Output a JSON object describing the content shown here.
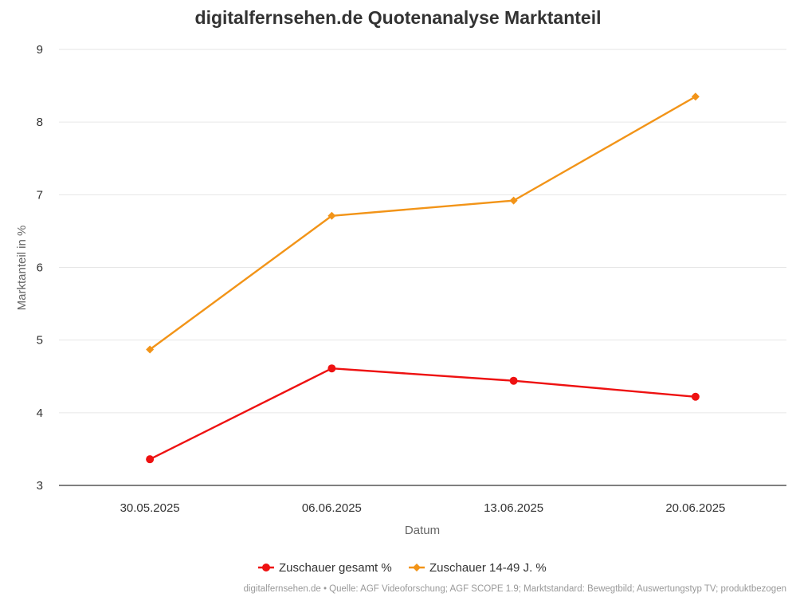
{
  "chart_data": {
    "type": "line",
    "title": "digitalfernsehen.de Quotenanalyse Marktanteil",
    "xlabel": "Datum",
    "ylabel": "Marktanteil in %",
    "categories": [
      "30.05.2025",
      "06.06.2025",
      "13.06.2025",
      "20.06.2025"
    ],
    "ylim": [
      3,
      9
    ],
    "yticks": [
      "3",
      "4",
      "5",
      "6",
      "7",
      "8",
      "9"
    ],
    "grid": true,
    "legend_position": "bottom",
    "series": [
      {
        "name": "Zuschauer gesamt %",
        "values": [
          3.36,
          4.61,
          4.44,
          4.22
        ],
        "color": "#ee1111",
        "marker": "circle"
      },
      {
        "name": "Zuschauer 14-49 J. %",
        "values": [
          4.87,
          6.71,
          6.92,
          8.35
        ],
        "color": "#f29418",
        "marker": "diamond"
      }
    ],
    "source": "digitalfernsehen.de • Quelle: AGF Videoforschung; AGF SCOPE 1.9; Marktstandard: Bewegtbild; Auswertungstyp TV; produktbezogen"
  }
}
